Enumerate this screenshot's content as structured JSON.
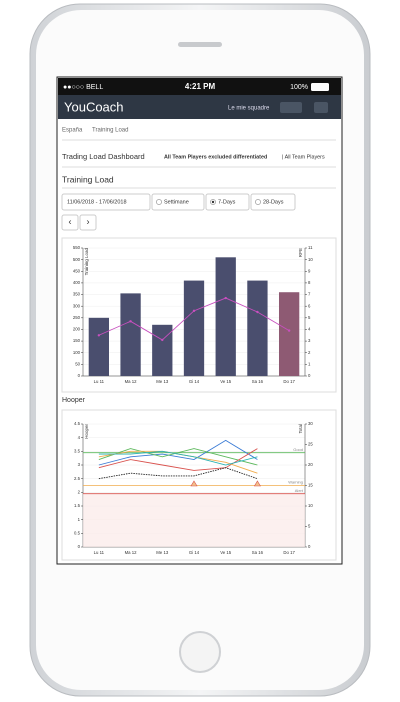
{
  "status_bar": {
    "carrier": "●●○○○ BELL",
    "time": "4:21 PM",
    "battery": "100%"
  },
  "nav": {
    "logo": "YouCoach",
    "teams": "Le mie squadre"
  },
  "breadcrumb": [
    "España",
    "Training Load"
  ],
  "dashboard": {
    "title": "Trading Load Dashboard",
    "filter_active": "All Team Players excluded differentiated",
    "filter_other": "| All Team Players"
  },
  "controls": {
    "date_range": "11/06/2018 - 17/06/2018",
    "options": [
      "Settimane",
      "7-Days",
      "28-Days"
    ],
    "selected": 1
  },
  "chart_data": [
    {
      "type": "bar_line",
      "title": "Training Load",
      "ylabel": "Training Load",
      "y2label": "RPE",
      "categories": [
        "Lu 11",
        "Ma 12",
        "Me 13",
        "Gi 14",
        "Ve 15",
        "Sa 16",
        "Do 17"
      ],
      "ylim": [
        0,
        550
      ],
      "yticks": [
        0,
        50,
        100,
        150,
        200,
        250,
        300,
        350,
        400,
        450,
        500,
        550
      ],
      "y2lim": [
        0,
        11
      ],
      "y2ticks": [
        0,
        1,
        2,
        3,
        4,
        5,
        6,
        7,
        8,
        9,
        10,
        11
      ],
      "grid": true,
      "series": [
        {
          "type": "bar",
          "colors": [
            "#4a4e6e",
            "#4a4e6e",
            "#4a4e6e",
            "#4a4e6e",
            "#4a4e6e",
            "#4a4e6e",
            "#8e5a73"
          ],
          "values": [
            250,
            355,
            220,
            410,
            510,
            410,
            360
          ]
        },
        {
          "type": "line",
          "axis": "y2",
          "color": "#c84fbf",
          "values": [
            3.5,
            4.7,
            3.1,
            5.6,
            6.7,
            5.5,
            3.9
          ]
        }
      ]
    },
    {
      "type": "line",
      "title": "Hooper",
      "ylabel": "Hooper",
      "y2label": "Total",
      "categories": [
        "Lu 11",
        "Ma 12",
        "Me 13",
        "Gi 14",
        "Ve 15",
        "Sa 16",
        "Do 17"
      ],
      "ylim": [
        0,
        4.5
      ],
      "yticks": [
        0,
        0.5,
        1,
        1.5,
        2,
        2.5,
        3,
        3.5,
        4,
        4.5
      ],
      "y2lim": [
        0,
        30
      ],
      "y2ticks": [
        0,
        5,
        10,
        15,
        20,
        25,
        30
      ],
      "grid": true,
      "thresholds": [
        {
          "label": "Good",
          "value": 23,
          "color": "#5cb85c"
        },
        {
          "label": "Warning",
          "value": 15,
          "color": "#f0ad4e"
        },
        {
          "label": "Alert",
          "value": 13,
          "color": "#d9534f",
          "shade": true
        }
      ],
      "series": [
        {
          "color": "#3a7bd5",
          "values": [
            3.0,
            3.3,
            3.4,
            3.2,
            3.9,
            3.2,
            null
          ]
        },
        {
          "color": "#5cb85c",
          "values": [
            3.2,
            3.6,
            3.3,
            3.6,
            3.3,
            3.0,
            null
          ]
        },
        {
          "color": "#d9534f",
          "values": [
            2.9,
            3.2,
            3.0,
            2.8,
            2.9,
            3.6,
            null
          ]
        },
        {
          "color": "#f0ad4e",
          "values": [
            3.3,
            3.5,
            3.5,
            3.3,
            3.1,
            2.7,
            null
          ]
        },
        {
          "color": "#2bb3b3",
          "values": [
            3.4,
            3.4,
            3.5,
            3.3,
            3.0,
            3.3,
            null
          ]
        },
        {
          "color": "#222222",
          "dash": true,
          "values": [
            2.5,
            2.7,
            2.6,
            2.6,
            2.9,
            2.5,
            null
          ]
        }
      ]
    }
  ]
}
